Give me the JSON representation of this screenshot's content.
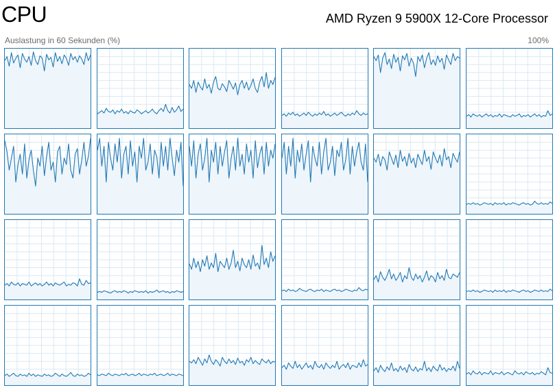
{
  "header": {
    "title": "CPU",
    "processor": "AMD Ryzen 9 5900X 12-Core Processor",
    "utilization_label": "Auslastung in 60 Sekunden (%)",
    "max_label": "100%"
  },
  "colors": {
    "line": "#1f78b4",
    "fill": "#eef5fb",
    "grid": "#d9e8f3"
  },
  "chart_data": {
    "type": "area",
    "ylim": [
      0,
      100
    ],
    "cores": [
      {
        "values": [
          85,
          90,
          78,
          95,
          82,
          88,
          92,
          76,
          94,
          87,
          83,
          90,
          79,
          96,
          85,
          80,
          91,
          88,
          72,
          93,
          86,
          89,
          77,
          95,
          84,
          90,
          81,
          92,
          88,
          79,
          94,
          86,
          90,
          83,
          91,
          87,
          80,
          95,
          85,
          92
        ]
      },
      {
        "values": [
          18,
          20,
          22,
          19,
          25,
          21,
          20,
          23,
          18,
          22,
          20,
          24,
          19,
          21,
          18,
          22,
          20,
          19,
          23,
          21,
          18,
          20,
          22,
          19,
          21,
          24,
          20,
          18,
          22,
          25,
          21,
          30,
          22,
          19,
          26,
          20,
          23,
          28,
          21,
          24
        ]
      },
      {
        "values": [
          55,
          50,
          60,
          45,
          58,
          52,
          48,
          62,
          50,
          55,
          44,
          58,
          65,
          50,
          48,
          56,
          52,
          46,
          60,
          55,
          49,
          57,
          42,
          55,
          60,
          50,
          58,
          48,
          54,
          62,
          50,
          45,
          58,
          65,
          52,
          70,
          50,
          60,
          55,
          64
        ]
      },
      {
        "values": [
          16,
          18,
          15,
          19,
          17,
          20,
          16,
          18,
          15,
          17,
          19,
          16,
          20,
          17,
          15,
          18,
          16,
          19,
          17,
          21,
          16,
          18,
          15,
          17,
          19,
          16,
          18,
          20,
          17,
          15,
          18,
          16,
          19,
          17,
          22,
          18,
          16,
          19,
          17,
          18
        ]
      },
      {
        "values": [
          90,
          85,
          92,
          70,
          88,
          95,
          80,
          87,
          75,
          93,
          83,
          89,
          72,
          91,
          86,
          94,
          78,
          88,
          82,
          65,
          90,
          84,
          92,
          76,
          88,
          95,
          80,
          86,
          79,
          91,
          83,
          88,
          74,
          92,
          86,
          80,
          94,
          85,
          90,
          88
        ]
      },
      {
        "values": [
          15,
          17,
          14,
          18,
          16,
          15,
          17,
          14,
          16,
          18,
          15,
          17,
          14,
          16,
          15,
          18,
          14,
          17,
          16,
          15,
          14,
          17,
          15,
          16,
          18,
          14,
          16,
          15,
          17,
          14,
          16,
          18,
          15,
          17,
          14,
          16,
          15,
          22,
          16,
          18
        ]
      },
      {
        "values": [
          92,
          78,
          55,
          70,
          85,
          40,
          62,
          75,
          50,
          88,
          45,
          68,
          80,
          55,
          35,
          70,
          60,
          85,
          48,
          72,
          90,
          55,
          65,
          40,
          78,
          85,
          50,
          70,
          62,
          88,
          55,
          45,
          75,
          82,
          50,
          68,
          90,
          60,
          72,
          95
        ]
      },
      {
        "values": [
          80,
          95,
          60,
          85,
          40,
          90,
          70,
          55,
          88,
          65,
          95,
          45,
          75,
          85,
          50,
          92,
          60,
          78,
          40,
          85,
          70,
          95,
          55,
          65,
          88,
          50,
          80,
          72,
          45,
          90,
          60,
          85,
          55,
          95,
          70,
          48,
          80,
          65,
          90,
          35
        ]
      },
      {
        "values": [
          85,
          60,
          92,
          45,
          75,
          88,
          55,
          70,
          95,
          40,
          80,
          65,
          90,
          50,
          85,
          60,
          78,
          92,
          45,
          70,
          85,
          55,
          95,
          60,
          75,
          50,
          88,
          65,
          80,
          45,
          92,
          58,
          75,
          85,
          50,
          90,
          60,
          80,
          70,
          88
        ]
      },
      {
        "values": [
          70,
          90,
          50,
          85,
          60,
          95,
          45,
          80,
          65,
          88,
          55,
          75,
          92,
          40,
          85,
          70,
          60,
          90,
          50,
          78,
          95,
          55,
          65,
          85,
          48,
          80,
          72,
          90,
          55,
          68,
          95,
          50,
          85,
          60,
          78,
          90,
          65,
          55,
          88,
          40
        ]
      },
      {
        "values": [
          70,
          65,
          75,
          60,
          72,
          68,
          55,
          78,
          70,
          62,
          74,
          58,
          80,
          66,
          72,
          60,
          76,
          64,
          70,
          58,
          75,
          68,
          62,
          80,
          66,
          72,
          56,
          78,
          70,
          64,
          74,
          60,
          82,
          68,
          72,
          58,
          76,
          70,
          65,
          78
        ]
      },
      {
        "values": [
          12,
          13,
          12,
          14,
          12,
          13,
          11,
          12,
          14,
          13,
          12,
          13,
          11,
          14,
          12,
          13,
          12,
          14,
          11,
          13,
          12,
          14,
          13,
          12,
          11,
          13,
          14,
          12,
          13,
          11,
          12,
          16,
          13,
          12,
          14,
          12,
          13,
          12,
          15,
          13
        ]
      },
      {
        "values": [
          18,
          20,
          17,
          22,
          19,
          18,
          21,
          17,
          20,
          19,
          18,
          22,
          17,
          19,
          21,
          18,
          20,
          17,
          19,
          22,
          18,
          20,
          17,
          21,
          19,
          18,
          20,
          22,
          17,
          19,
          18,
          21,
          20,
          17,
          26,
          19,
          18,
          24,
          20,
          21
        ]
      },
      {
        "values": [
          9,
          10,
          9,
          11,
          10,
          9,
          8,
          10,
          11,
          9,
          10,
          9,
          11,
          10,
          8,
          10,
          9,
          11,
          10,
          9,
          10,
          9,
          11,
          8,
          10,
          9,
          10,
          12,
          9,
          10,
          11,
          9,
          10,
          8,
          10,
          9,
          11,
          10,
          9,
          10
        ]
      },
      {
        "values": [
          45,
          38,
          52,
          40,
          48,
          35,
          50,
          42,
          55,
          38,
          46,
          40,
          58,
          35,
          48,
          44,
          40,
          52,
          38,
          46,
          62,
          40,
          48,
          36,
          52,
          44,
          40,
          50,
          38,
          56,
          42,
          46,
          38,
          68,
          44,
          52,
          40,
          60,
          48,
          55
        ]
      },
      {
        "values": [
          11,
          12,
          10,
          13,
          11,
          12,
          10,
          11,
          14,
          12,
          11,
          10,
          12,
          13,
          11,
          10,
          12,
          11,
          13,
          10,
          12,
          11,
          10,
          12,
          13,
          11,
          12,
          10,
          11,
          13,
          12,
          11,
          10,
          12,
          11,
          15,
          12,
          11,
          13,
          12
        ]
      },
      {
        "values": [
          25,
          30,
          22,
          35,
          28,
          24,
          30,
          38,
          26,
          32,
          24,
          28,
          34,
          22,
          30,
          26,
          40,
          28,
          24,
          32,
          26,
          30,
          22,
          28,
          36,
          24,
          30,
          28,
          22,
          34,
          26,
          30,
          24,
          38,
          28,
          26,
          32,
          30,
          28,
          34
        ]
      },
      {
        "values": [
          10,
          11,
          10,
          12,
          10,
          11,
          9,
          10,
          12,
          11,
          10,
          11,
          9,
          12,
          10,
          11,
          10,
          12,
          9,
          11,
          10,
          12,
          11,
          10,
          9,
          11,
          12,
          10,
          11,
          9,
          10,
          12,
          11,
          10,
          12,
          10,
          11,
          10,
          13,
          11
        ]
      },
      {
        "values": [
          12,
          14,
          11,
          13,
          15,
          12,
          11,
          14,
          12,
          13,
          11,
          15,
          12,
          14,
          11,
          13,
          12,
          11,
          14,
          12,
          13,
          11,
          12,
          15,
          13,
          11,
          14,
          12,
          11,
          13,
          16,
          12,
          11,
          14,
          12,
          13,
          11,
          12,
          15,
          13
        ]
      },
      {
        "values": [
          13,
          12,
          14,
          13,
          12,
          15,
          13,
          12,
          14,
          13,
          12,
          14,
          13,
          15,
          12,
          13,
          14,
          12,
          13,
          15,
          12,
          14,
          13,
          12,
          14,
          13,
          15,
          12,
          13,
          14,
          12,
          13,
          15,
          12,
          14,
          13,
          12,
          14,
          13,
          12
        ]
      },
      {
        "values": [
          30,
          28,
          32,
          27,
          35,
          30,
          25,
          33,
          28,
          38,
          30,
          26,
          32,
          29,
          24,
          35,
          30,
          27,
          33,
          28,
          31,
          26,
          34,
          28,
          30,
          25,
          32,
          29,
          35,
          27,
          31,
          28,
          26,
          33,
          30,
          28,
          32,
          27,
          30,
          29
        ]
      },
      {
        "values": [
          22,
          25,
          20,
          28,
          24,
          21,
          30,
          22,
          26,
          20,
          24,
          28,
          22,
          25,
          20,
          30,
          24,
          22,
          26,
          20,
          28,
          24,
          21,
          25,
          22,
          30,
          20,
          24,
          26,
          22,
          28,
          20,
          25,
          24,
          22,
          28,
          23,
          32,
          24,
          26
        ]
      },
      {
        "values": [
          18,
          22,
          16,
          25,
          20,
          17,
          23,
          19,
          28,
          18,
          21,
          17,
          24,
          19,
          22,
          16,
          26,
          20,
          18,
          23,
          17,
          21,
          19,
          30,
          18,
          22,
          17,
          24,
          20,
          18,
          26,
          19,
          22,
          17,
          21,
          19,
          24,
          18,
          30,
          21
        ]
      },
      {
        "values": [
          14,
          16,
          13,
          18,
          15,
          14,
          17,
          13,
          16,
          15,
          14,
          18,
          13,
          16,
          15,
          14,
          17,
          13,
          15,
          16,
          14,
          13,
          18,
          15,
          14,
          16,
          13,
          17,
          15,
          14,
          16,
          13,
          15,
          14,
          17,
          15,
          13,
          22,
          16,
          15
        ]
      }
    ]
  }
}
